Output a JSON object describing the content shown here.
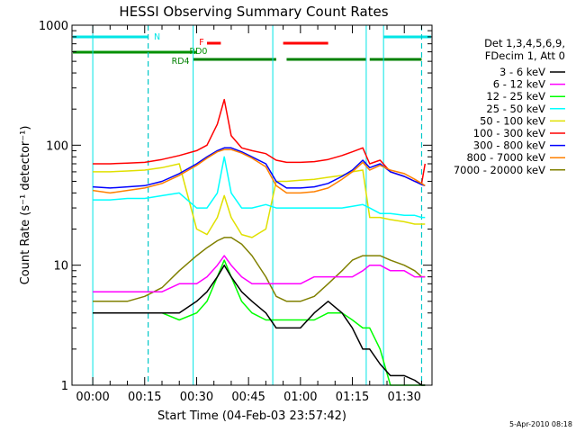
{
  "chart_data": {
    "type": "line",
    "title": "HESSI Observing Summary Count Rates",
    "xlabel": "Start Time (04-Feb-03 23:57:42)",
    "ylabel": "Count Rate (s⁻¹ detector⁻¹)",
    "y_scale": "log",
    "ylim": [
      1,
      1000
    ],
    "xlim_minutes_after_start": [
      -6,
      98
    ],
    "x_tick_labels": [
      "00:00",
      "00:15",
      "00:30",
      "00:45",
      "01:00",
      "01:15",
      "01:30"
    ],
    "y_tick_labels": [
      "1",
      "10",
      "100",
      "1000"
    ],
    "legend_header": [
      "Det 1,3,4,5,6,9,",
      "FDecim 1, Att 0"
    ],
    "legend_position": "right",
    "timestamp": "5-Apr-2010 08:18",
    "flags": [
      {
        "label": "N",
        "color": "#00e5e5",
        "segments": [
          [
            -6,
            16
          ],
          [
            84,
            98
          ]
        ]
      },
      {
        "label": "F",
        "color": "#ff0000",
        "segments": [
          [
            33,
            37
          ],
          [
            55,
            68
          ]
        ]
      },
      {
        "label": "RD0",
        "color": "#009000",
        "segments": [
          [
            -6,
            30
          ]
        ]
      },
      {
        "label": "RD4",
        "color": "#008000",
        "segments": [
          [
            29,
            53
          ],
          [
            56,
            79
          ],
          [
            80,
            95
          ]
        ]
      }
    ],
    "dashed_lines_minutes": [
      16,
      95
    ],
    "solid_vertical_lines_minutes": [
      0,
      29,
      52,
      79,
      84
    ],
    "x_minutes": [
      0,
      5,
      10,
      15,
      20,
      25,
      30,
      33,
      36,
      38,
      40,
      43,
      46,
      50,
      53,
      56,
      60,
      64,
      68,
      72,
      75,
      78,
      80,
      83,
      86,
      90,
      93,
      95,
      96
    ],
    "series": [
      {
        "name": "3 - 6 keV",
        "color": "#000000",
        "values": [
          4,
          4,
          4,
          4,
          4,
          4,
          5,
          6,
          8,
          10,
          8,
          6,
          5,
          4,
          3,
          3,
          3,
          4,
          5,
          4,
          3,
          2,
          2,
          1.5,
          1.2,
          1.2,
          1.1,
          1,
          1
        ]
      },
      {
        "name": "6 - 12 keV",
        "color": "#ff00ff",
        "values": [
          6,
          6,
          6,
          6,
          6,
          7,
          7,
          8,
          10,
          12,
          10,
          8,
          7,
          7,
          7,
          7,
          7,
          8,
          8,
          8,
          8,
          9,
          10,
          10,
          9,
          9,
          8,
          8,
          8
        ]
      },
      {
        "name": "12 - 25 keV",
        "color": "#00ff00",
        "values": [
          4,
          4,
          4,
          4,
          4,
          3.5,
          4,
          5,
          8,
          11,
          8,
          5,
          4,
          3.5,
          3.5,
          3.5,
          3.5,
          3.5,
          4,
          4,
          3.5,
          3,
          3,
          2,
          1,
          1,
          1,
          1,
          1
        ]
      },
      {
        "name": "25 - 50 keV",
        "color": "#00ffff",
        "values": [
          35,
          35,
          36,
          36,
          38,
          40,
          30,
          30,
          40,
          80,
          40,
          30,
          30,
          32,
          30,
          30,
          30,
          30,
          30,
          30,
          31,
          32,
          30,
          27,
          27,
          26,
          26,
          25,
          25
        ]
      },
      {
        "name": "50 - 100 keV",
        "color": "#e0e000",
        "values": [
          60,
          60,
          61,
          62,
          65,
          70,
          20,
          18,
          25,
          38,
          25,
          18,
          17,
          20,
          50,
          50,
          51,
          52,
          54,
          56,
          60,
          62,
          25,
          25,
          24,
          23,
          22,
          22,
          22
        ]
      },
      {
        "name": "100 - 300 keV",
        "color": "#ff0000",
        "values": [
          70,
          70,
          71,
          72,
          76,
          82,
          90,
          100,
          150,
          240,
          120,
          95,
          90,
          85,
          75,
          72,
          72,
          73,
          76,
          82,
          88,
          95,
          70,
          75,
          60,
          55,
          50,
          48,
          70
        ]
      },
      {
        "name": "300 - 800 keV",
        "color": "#0000ff",
        "values": [
          45,
          44,
          45,
          46,
          50,
          58,
          70,
          80,
          90,
          95,
          95,
          88,
          80,
          70,
          50,
          44,
          44,
          45,
          48,
          55,
          62,
          75,
          65,
          70,
          60,
          55,
          50,
          47,
          46
        ]
      },
      {
        "name": "800 - 7000 keV",
        "color": "#ff8000",
        "values": [
          42,
          40,
          42,
          44,
          48,
          56,
          68,
          78,
          88,
          92,
          92,
          86,
          78,
          66,
          46,
          40,
          40,
          41,
          44,
          52,
          60,
          72,
          62,
          68,
          62,
          58,
          52,
          48,
          46
        ]
      },
      {
        "name": "7000 - 20000 keV",
        "color": "#808000",
        "values": [
          5,
          5,
          5,
          5.5,
          6.5,
          9,
          12,
          14,
          16,
          17,
          17,
          15,
          12,
          8,
          5.5,
          5,
          5,
          5.5,
          7,
          9,
          11,
          12,
          12,
          12,
          11,
          10,
          9,
          8,
          8
        ]
      }
    ]
  }
}
